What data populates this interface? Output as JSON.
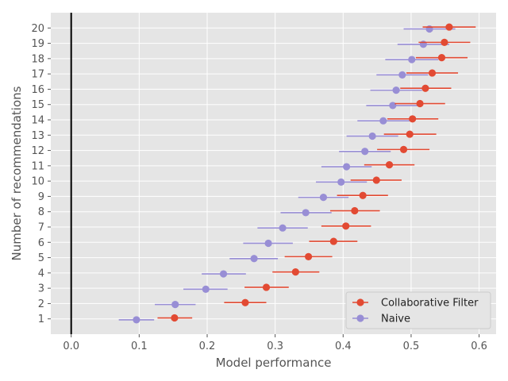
{
  "chart_data": {
    "type": "scatter",
    "orientation": "horizontal-dot-plot-with-error-bars",
    "xlabel": "Model performance",
    "ylabel": "Number of recommendations",
    "xlim": [
      -0.03,
      0.625
    ],
    "ylim": [
      0,
      21
    ],
    "x_ticks": [
      "0.0",
      "0.1",
      "0.2",
      "0.3",
      "0.4",
      "0.5",
      "0.6"
    ],
    "categories": [
      "1",
      "2",
      "3",
      "4",
      "5",
      "6",
      "7",
      "8",
      "9",
      "10",
      "11",
      "12",
      "13",
      "14",
      "15",
      "16",
      "17",
      "18",
      "19",
      "20"
    ],
    "grid": true,
    "zero_line": true,
    "legend_position": "lower-right",
    "series": [
      {
        "name": "Collaborative Filter",
        "color": "#e24a33",
        "values": [
          0.152,
          0.256,
          0.287,
          0.33,
          0.349,
          0.386,
          0.404,
          0.417,
          0.429,
          0.449,
          0.468,
          0.489,
          0.498,
          0.502,
          0.513,
          0.521,
          0.531,
          0.545,
          0.549,
          0.556
        ],
        "err_low": [
          0.127,
          0.225,
          0.255,
          0.296,
          0.314,
          0.35,
          0.368,
          0.381,
          0.391,
          0.411,
          0.431,
          0.45,
          0.46,
          0.465,
          0.476,
          0.484,
          0.493,
          0.507,
          0.511,
          0.517
        ],
        "err_high": [
          0.178,
          0.287,
          0.32,
          0.365,
          0.384,
          0.421,
          0.441,
          0.454,
          0.466,
          0.486,
          0.505,
          0.527,
          0.537,
          0.54,
          0.55,
          0.559,
          0.569,
          0.583,
          0.587,
          0.595
        ]
      },
      {
        "name": "Naive",
        "color": "#988ed5",
        "values": [
          0.096,
          0.153,
          0.198,
          0.224,
          0.269,
          0.29,
          0.311,
          0.345,
          0.371,
          0.397,
          0.405,
          0.432,
          0.443,
          0.459,
          0.473,
          0.478,
          0.487,
          0.501,
          0.518,
          0.527
        ],
        "err_low": [
          0.07,
          0.123,
          0.165,
          0.192,
          0.233,
          0.253,
          0.274,
          0.308,
          0.334,
          0.36,
          0.368,
          0.394,
          0.405,
          0.421,
          0.434,
          0.44,
          0.449,
          0.462,
          0.48,
          0.489
        ],
        "err_high": [
          0.122,
          0.183,
          0.23,
          0.257,
          0.304,
          0.326,
          0.348,
          0.383,
          0.408,
          0.435,
          0.442,
          0.47,
          0.481,
          0.498,
          0.512,
          0.516,
          0.525,
          0.54,
          0.556,
          0.565
        ]
      }
    ]
  }
}
